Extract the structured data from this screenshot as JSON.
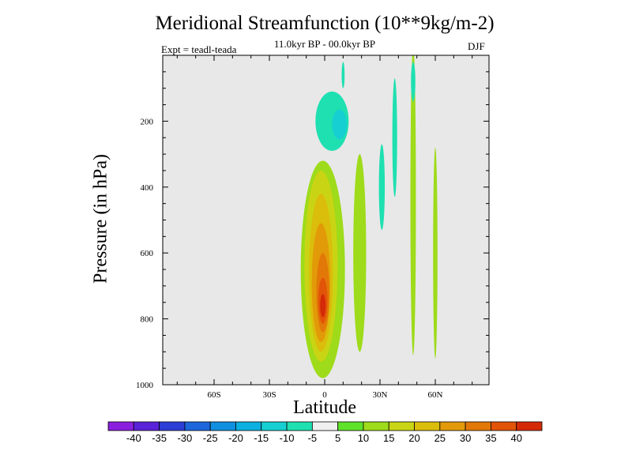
{
  "chart_data": {
    "type": "filled-contour",
    "title": "Meridional Streamfunction (10**9kg/m-2)",
    "subtitle": "11.0kyr BP - 00.0kyr BP",
    "experiment": "Expt = teadl-teada",
    "season": "DJF",
    "xlabel": "Latitude",
    "ylabel": "Pressure (in hPa)",
    "x_range": [
      -90,
      90
    ],
    "y_range": [
      0,
      1000
    ],
    "y_inverted": true,
    "x_ticks": [
      {
        "value": -60,
        "label": "60S"
      },
      {
        "value": -30,
        "label": "30S"
      },
      {
        "value": 0,
        "label": "0"
      },
      {
        "value": 30,
        "label": "30N"
      },
      {
        "value": 60,
        "label": "60N"
      }
    ],
    "y_ticks": [
      {
        "value": 200,
        "label": "200"
      },
      {
        "value": 400,
        "label": "400"
      },
      {
        "value": 600,
        "label": "600"
      },
      {
        "value": 800,
        "label": "800"
      },
      {
        "value": 1000,
        "label": "1000"
      }
    ],
    "background_color": "#e8e8e8",
    "colorbar": {
      "labels": [
        "-40",
        "-35",
        "-30",
        "-25",
        "-20",
        "-15",
        "-10",
        "-5",
        "5",
        "10",
        "15",
        "20",
        "25",
        "30",
        "35",
        "40"
      ],
      "colors": [
        "#8a1fe0",
        "#5a22d8",
        "#2c3ed6",
        "#1d66dc",
        "#108fe0",
        "#0ab0e0",
        "#16cfd2",
        "#1ee0b0",
        "#f0f0f0",
        "#5ee22a",
        "#9edb1a",
        "#c9d514",
        "#dbbd0c",
        "#e29a08",
        "#e27808",
        "#e25408",
        "#d42a08"
      ]
    },
    "regions": [
      {
        "name": "positive-cell-10",
        "value": 10,
        "center": [
          -1,
          650
        ],
        "half_width": 12,
        "half_height": 330
      },
      {
        "name": "positive-cell-15",
        "value": 15,
        "center": [
          -2,
          640
        ],
        "half_width": 9,
        "half_height": 290
      },
      {
        "name": "positive-cell-20",
        "value": 20,
        "center": [
          -2,
          660
        ],
        "half_width": 6.5,
        "half_height": 240
      },
      {
        "name": "positive-cell-25",
        "value": 25,
        "center": [
          -2,
          690
        ],
        "half_width": 5,
        "half_height": 180
      },
      {
        "name": "positive-cell-30",
        "value": 30,
        "center": [
          -1,
          720
        ],
        "half_width": 3.5,
        "half_height": 120
      },
      {
        "name": "positive-cell-35",
        "value": 35,
        "center": [
          -1,
          745
        ],
        "half_width": 2.5,
        "half_height": 70
      },
      {
        "name": "positive-cell-40",
        "value": 40,
        "center": [
          -1,
          760
        ],
        "half_width": 1.5,
        "half_height": 35
      },
      {
        "name": "nh-positive-band-20n",
        "value": 10,
        "center": [
          19,
          600
        ],
        "half_width": 3.5,
        "half_height": 300
      },
      {
        "name": "nh-positive-band-48n",
        "value": 10,
        "center": [
          48,
          440
        ],
        "half_width": 1.5,
        "half_height": 470
      },
      {
        "name": "nh-positive-band-60n",
        "value": 10,
        "center": [
          60,
          600
        ],
        "half_width": 1.2,
        "half_height": 320
      },
      {
        "name": "upper-negative-cell",
        "value": -10,
        "center": [
          4,
          200
        ],
        "half_width": 9,
        "half_height": 90
      },
      {
        "name": "upper-negative-core",
        "value": -15,
        "center": [
          8,
          210
        ],
        "half_width": 4,
        "half_height": 45
      },
      {
        "name": "negative-band-31n",
        "value": -10,
        "center": [
          31,
          400
        ],
        "half_width": 1.6,
        "half_height": 130
      },
      {
        "name": "negative-band-38n",
        "value": -10,
        "center": [
          38,
          250
        ],
        "half_width": 1.3,
        "half_height": 180
      },
      {
        "name": "negative-band-48n-top",
        "value": -10,
        "center": [
          48,
          80
        ],
        "half_width": 1.2,
        "half_height": 60
      },
      {
        "name": "negative-streak-10n",
        "value": -10,
        "center": [
          10,
          60
        ],
        "half_width": 0.8,
        "half_height": 40
      }
    ]
  }
}
